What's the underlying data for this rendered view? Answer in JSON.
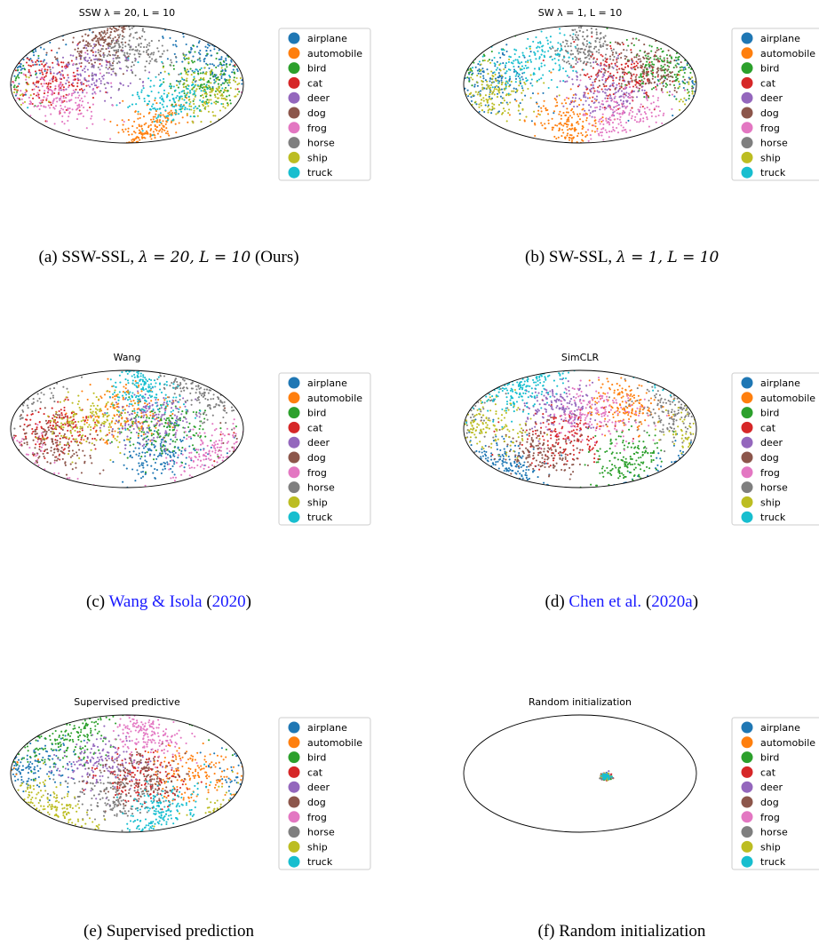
{
  "categories": [
    "airplane",
    "automobile",
    "bird",
    "cat",
    "deer",
    "dog",
    "frog",
    "horse",
    "ship",
    "truck"
  ],
  "colors": [
    "#1f77b4",
    "#ff7f0e",
    "#2ca02c",
    "#d62728",
    "#9467bd",
    "#8c564b",
    "#e377c2",
    "#7f7f7f",
    "#bcbd22",
    "#17becf"
  ],
  "chart_data": [
    {
      "type": "scatter",
      "projection": "mollweide",
      "title": "SSW λ = 20, L = 10",
      "caption": {
        "prefix": "(a) SSW-SSL, ",
        "math": "λ = 20, L = 10",
        "suffix": " (Ours)"
      },
      "clusters": [
        {
          "category": "airplane",
          "lon": 150,
          "lat": 30
        },
        {
          "category": "automobile",
          "lon": 60,
          "lat": -55
        },
        {
          "category": "bird",
          "lon": 130,
          "lat": 5
        },
        {
          "category": "cat",
          "lon": -120,
          "lat": 5
        },
        {
          "category": "deer",
          "lon": -60,
          "lat": 15
        },
        {
          "category": "dog",
          "lon": -60,
          "lat": 55
        },
        {
          "category": "frog",
          "lon": -110,
          "lat": -20
        },
        {
          "category": "horse",
          "lon": 10,
          "lat": 40
        },
        {
          "category": "ship",
          "lon": 130,
          "lat": -10
        },
        {
          "category": "truck",
          "lon": 70,
          "lat": -20
        }
      ]
    },
    {
      "type": "scatter",
      "projection": "mollweide",
      "title": "SW λ = 1, L = 10",
      "caption": {
        "prefix": "(b) SW-SSL, ",
        "math": "λ = 1, L = 10",
        "suffix": ""
      },
      "clusters": [
        {
          "category": "airplane",
          "lon": -150,
          "lat": 0
        },
        {
          "category": "automobile",
          "lon": -30,
          "lat": -50
        },
        {
          "category": "bird",
          "lon": 140,
          "lat": 20
        },
        {
          "category": "cat",
          "lon": 60,
          "lat": 10
        },
        {
          "category": "deer",
          "lon": 40,
          "lat": -10
        },
        {
          "category": "dog",
          "lon": 110,
          "lat": 20
        },
        {
          "category": "frog",
          "lon": 80,
          "lat": -40
        },
        {
          "category": "horse",
          "lon": 10,
          "lat": 50
        },
        {
          "category": "ship",
          "lon": -140,
          "lat": -10
        },
        {
          "category": "truck",
          "lon": -80,
          "lat": 30
        }
      ]
    },
    {
      "type": "scatter",
      "projection": "mollweide",
      "title": "Wang",
      "caption": {
        "prefix": "(c) ",
        "cite": "Wang & Isola",
        "year": "2020"
      },
      "clusters": [
        {
          "category": "airplane",
          "lon": 60,
          "lat": -30
        },
        {
          "category": "automobile",
          "lon": 0,
          "lat": 20
        },
        {
          "category": "bird",
          "lon": 60,
          "lat": 0
        },
        {
          "category": "cat",
          "lon": -110,
          "lat": 0
        },
        {
          "category": "deer",
          "lon": 40,
          "lat": 15
        },
        {
          "category": "dog",
          "lon": -120,
          "lat": -20
        },
        {
          "category": "frog",
          "lon": 150,
          "lat": -30
        },
        {
          "category": "horse",
          "lon": 150,
          "lat": 40
        },
        {
          "category": "ship",
          "lon": -60,
          "lat": 10
        },
        {
          "category": "truck",
          "lon": 40,
          "lat": 50
        }
      ]
    },
    {
      "type": "scatter",
      "projection": "mollweide",
      "title": "SimCLR",
      "caption": {
        "prefix": "(d) ",
        "cite": "Chen et al.",
        "year": "2020a"
      },
      "clusters": [
        {
          "category": "airplane",
          "lon": -150,
          "lat": -40
        },
        {
          "category": "automobile",
          "lon": 80,
          "lat": 30
        },
        {
          "category": "bird",
          "lon": 90,
          "lat": -40
        },
        {
          "category": "cat",
          "lon": -30,
          "lat": -10
        },
        {
          "category": "deer",
          "lon": -40,
          "lat": 30
        },
        {
          "category": "dog",
          "lon": -60,
          "lat": -30
        },
        {
          "category": "frog",
          "lon": 30,
          "lat": 20
        },
        {
          "category": "horse",
          "lon": 150,
          "lat": 20
        },
        {
          "category": "ship",
          "lon": -150,
          "lat": 0
        },
        {
          "category": "truck",
          "lon": -130,
          "lat": 50
        }
      ]
    },
    {
      "type": "scatter",
      "projection": "mollweide",
      "title": "Supervised predictive",
      "caption": {
        "prefix": "(e) Supervised prediction"
      },
      "clusters": [
        {
          "category": "airplane",
          "lon": -155,
          "lat": 5
        },
        {
          "category": "automobile",
          "lon": 110,
          "lat": 0
        },
        {
          "category": "bird",
          "lon": -120,
          "lat": 45
        },
        {
          "category": "cat",
          "lon": 20,
          "lat": -5
        },
        {
          "category": "deer",
          "lon": -40,
          "lat": 10
        },
        {
          "category": "dog",
          "lon": 20,
          "lat": -5
        },
        {
          "category": "frog",
          "lon": 45,
          "lat": 50
        },
        {
          "category": "horse",
          "lon": -20,
          "lat": -30
        },
        {
          "category": "ship",
          "lon": -150,
          "lat": -40
        },
        {
          "category": "truck",
          "lon": 70,
          "lat": -50
        }
      ]
    },
    {
      "type": "scatter",
      "projection": "mollweide",
      "title": "Random initialization",
      "caption": {
        "prefix": "(f) Random initialization"
      },
      "clusters": [
        {
          "category": "airplane",
          "lon": 40,
          "lat": -4
        },
        {
          "category": "automobile",
          "lon": 40,
          "lat": -4
        },
        {
          "category": "bird",
          "lon": 40,
          "lat": -4
        },
        {
          "category": "cat",
          "lon": 40,
          "lat": -4
        },
        {
          "category": "deer",
          "lon": 40,
          "lat": -4
        },
        {
          "category": "dog",
          "lon": 40,
          "lat": -4
        },
        {
          "category": "frog",
          "lon": 40,
          "lat": -4
        },
        {
          "category": "horse",
          "lon": 40,
          "lat": -4
        },
        {
          "category": "ship",
          "lon": 40,
          "lat": -4
        },
        {
          "category": "truck",
          "lon": 40,
          "lat": -4
        }
      ]
    }
  ]
}
